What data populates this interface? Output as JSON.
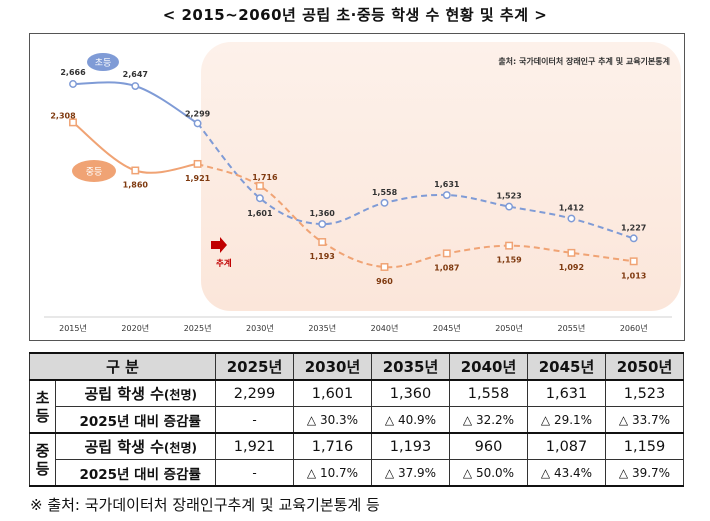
{
  "title": "< 2015~2060년 공립 초·중등 학생 수 현황 및 추계 >",
  "chart_data": {
    "type": "line",
    "categories": [
      "2015년",
      "2020년",
      "2025년",
      "2030년",
      "2035년",
      "2040년",
      "2045년",
      "2050년",
      "2055년",
      "2060년"
    ],
    "series": [
      {
        "name": "초등",
        "color": "#7f9bd6",
        "values": [
          2666,
          2647,
          2299,
          1601,
          1360,
          1558,
          1631,
          1523,
          1412,
          1227
        ],
        "labels": [
          "2,666",
          "2,647",
          "2,299",
          "1,601",
          "1,360",
          "1,558",
          "1,631",
          "1,523",
          "1,412",
          "1,227"
        ]
      },
      {
        "name": "중등",
        "color": "#f0a374",
        "values": [
          2308,
          1860,
          1921,
          1716,
          1193,
          960,
          1087,
          1159,
          1092,
          1013
        ],
        "labels": [
          "2,308",
          "1,860",
          "1,921",
          "1,716",
          "1,193",
          "960",
          "1,087",
          "1,159",
          "1,092",
          "1,013"
        ]
      }
    ],
    "projection_start_index": 2,
    "projection_label": "추계",
    "source_note": "출처: 국가데이터처 장래인구 추계 및 교육기본통계",
    "grid": false
  },
  "table": {
    "header": [
      "구 분",
      "2025년",
      "2030년",
      "2035년",
      "2040년",
      "2045년",
      "2050년"
    ],
    "groups": [
      {
        "level": "초등",
        "count_label": "공립 학생 수",
        "count_unit": "(천명)",
        "counts": [
          "2,299",
          "1,601",
          "1,360",
          "1,558",
          "1,631",
          "1,523"
        ],
        "change_label": "2025년 대비 증감률",
        "changes": [
          "-",
          "△ 30.3%",
          "△ 40.9%",
          "△ 32.2%",
          "△ 29.1%",
          "△ 33.7%"
        ]
      },
      {
        "level": "중등",
        "count_label": "공립 학생 수",
        "count_unit": "(천명)",
        "counts": [
          "1,921",
          "1,716",
          "1,193",
          "960",
          "1,087",
          "1,159"
        ],
        "change_label": "2025년 대비 증감률",
        "changes": [
          "-",
          "△ 10.7%",
          "△ 37.9%",
          "△ 50.0%",
          "△ 43.4%",
          "△ 39.7%"
        ]
      }
    ]
  },
  "footnote": "※ 출처: 국가데이터처 장래인구추계 및 교육기본통계 등"
}
